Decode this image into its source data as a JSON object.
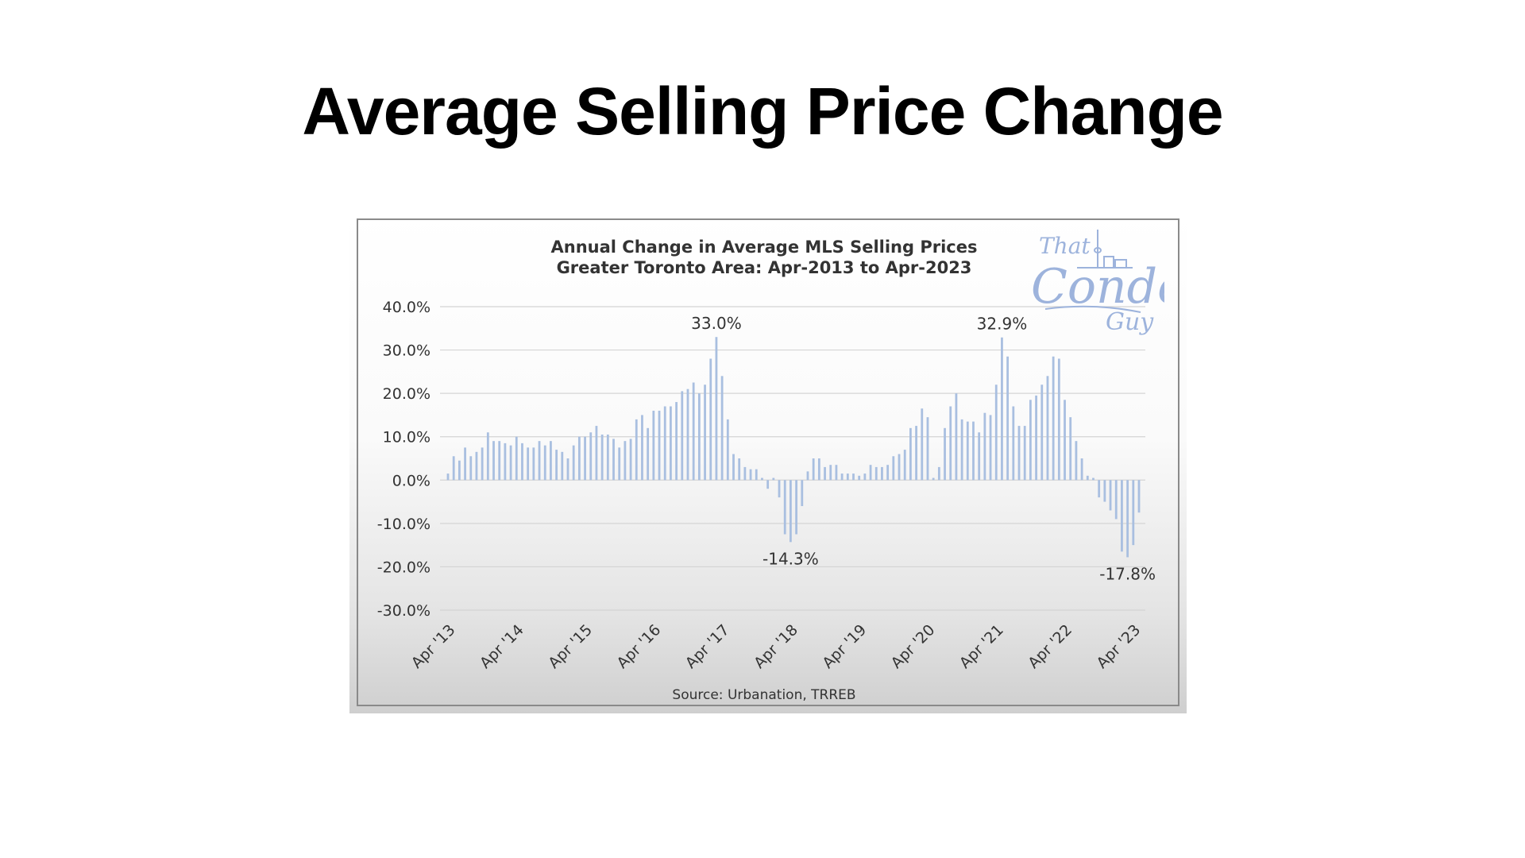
{
  "slide": {
    "title": "Average Selling Price Change"
  },
  "logo": {
    "top": "That",
    "main": "Condo",
    "bottom": "Guy"
  },
  "colors": {
    "bar": "#a9bfe0",
    "grid": "#d4d4d4",
    "frame": "#8a8a8a",
    "logo": "#9db3dc"
  },
  "chart_data": {
    "type": "bar",
    "title": "Annual Change in Average MLS Selling Prices",
    "subtitle": "Greater Toronto Area: Apr-2013 to Apr-2023",
    "source": "Source: Urbanation, TRREB",
    "ylim": [
      -30,
      40
    ],
    "yticks": [
      40,
      30,
      20,
      10,
      0,
      -10,
      -20,
      -30
    ],
    "ytick_labels": [
      "40.0%",
      "30.0%",
      "20.0%",
      "10.0%",
      "0.0%",
      "-10.0%",
      "-20.0%",
      "-30.0%"
    ],
    "xtick_labels": [
      "Apr '13",
      "Apr '14",
      "Apr '15",
      "Apr '16",
      "Apr '17",
      "Apr '18",
      "Apr '19",
      "Apr '20",
      "Apr '21",
      "Apr '22",
      "Apr '23"
    ],
    "grid": true,
    "values": [
      1.5,
      5.5,
      4.5,
      7.5,
      5.5,
      6.5,
      7.5,
      11.0,
      9.0,
      9.0,
      8.5,
      8.0,
      10.0,
      8.5,
      7.5,
      7.5,
      9.0,
      8.0,
      9.0,
      7.0,
      6.5,
      5.0,
      8.0,
      10.0,
      10.0,
      11.0,
      12.5,
      10.5,
      10.5,
      9.5,
      7.5,
      9.0,
      9.5,
      14.0,
      15.0,
      12.0,
      16.0,
      16.0,
      17.0,
      17.0,
      18.0,
      20.5,
      21.0,
      22.5,
      20.0,
      22.0,
      28.0,
      33.0,
      24.0,
      14.0,
      6.0,
      5.0,
      3.0,
      2.5,
      2.5,
      0.5,
      -2.0,
      0.5,
      -4.0,
      -12.5,
      -14.3,
      -12.5,
      -6.0,
      2.0,
      5.0,
      5.0,
      3.0,
      3.5,
      3.5,
      1.5,
      1.5,
      1.5,
      1.0,
      1.5,
      3.5,
      3.0,
      3.0,
      3.5,
      5.5,
      6.0,
      7.0,
      12.0,
      12.5,
      16.5,
      14.5,
      0.5,
      3.0,
      12.0,
      17.0,
      20.0,
      14.0,
      13.5,
      13.5,
      11.0,
      15.5,
      15.0,
      22.0,
      32.9,
      28.5,
      17.0,
      12.5,
      12.5,
      18.5,
      19.5,
      22.0,
      24.0,
      28.5,
      28.0,
      18.5,
      14.5,
      9.0,
      5.0,
      1.0,
      0.5,
      -4.0,
      -5.0,
      -7.0,
      -9.0,
      -16.5,
      -17.8,
      -15.0,
      -7.5
    ],
    "annotations": [
      {
        "label": "33.0%",
        "index": 47,
        "value": 33.0
      },
      {
        "label": "-14.3%",
        "index": 60,
        "value": -14.3
      },
      {
        "label": "32.9%",
        "index": 97,
        "value": 32.9
      },
      {
        "label": "-17.8%",
        "index": 119,
        "value": -17.8
      }
    ]
  }
}
